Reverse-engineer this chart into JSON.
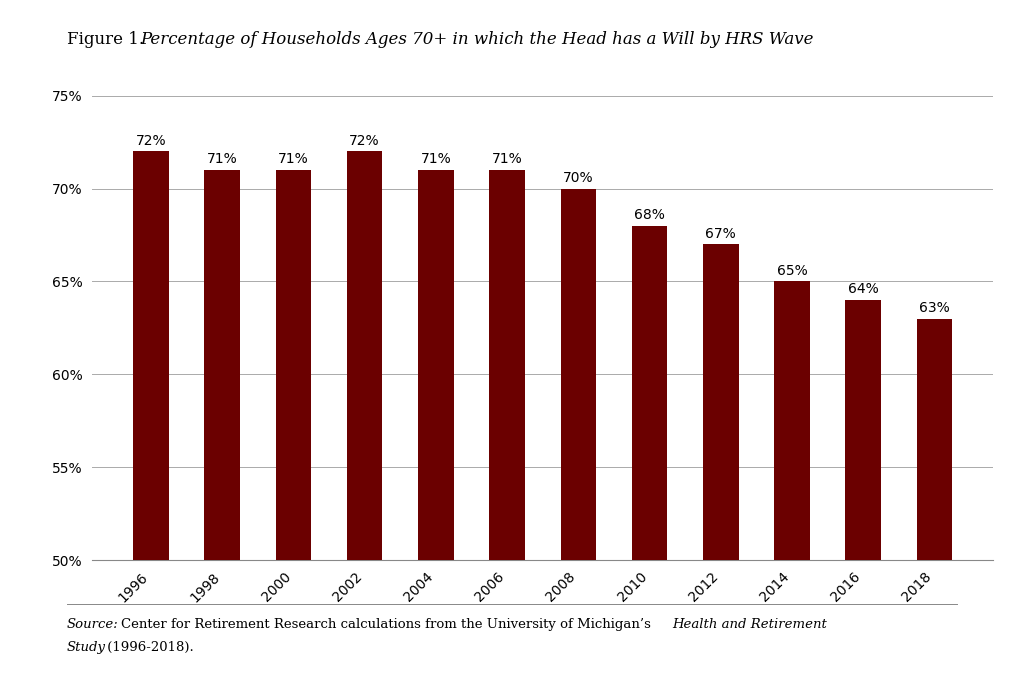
{
  "categories": [
    "1996",
    "1998",
    "2000",
    "2002",
    "2004",
    "2006",
    "2008",
    "2010",
    "2012",
    "2014",
    "2016",
    "2018"
  ],
  "values": [
    72,
    71,
    71,
    72,
    71,
    71,
    70,
    68,
    67,
    65,
    64,
    63
  ],
  "bar_color": "#6B0000",
  "ylim": [
    50,
    75
  ],
  "yticks": [
    50,
    55,
    60,
    65,
    70,
    75
  ],
  "ytick_labels": [
    "50%",
    "55%",
    "60%",
    "65%",
    "70%",
    "75%"
  ],
  "title_normal": "Figure 1. ",
  "title_italic": "Percentage of Households Ages 70+ in which the Head has a Will by HRS Wave",
  "background_color": "#FFFFFF",
  "grid_color": "#AAAAAA",
  "bar_label_fontsize": 10,
  "tick_fontsize": 10,
  "title_fontsize": 12,
  "source_fontsize": 9.5,
  "bar_width": 0.5
}
